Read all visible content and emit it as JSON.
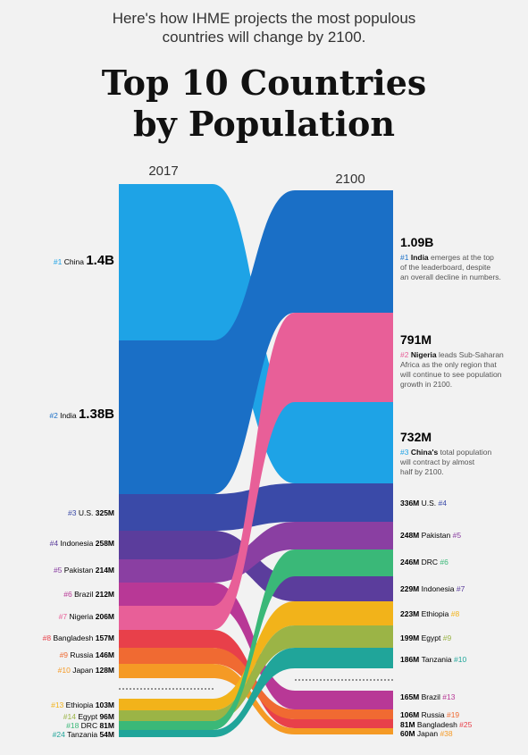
{
  "header": {
    "subtitle_line1": "Here's how IHME projects the most populous",
    "subtitle_line2": "countries will change by 2100.",
    "title_line1": "Top 10 Countries",
    "title_line2": "by Population"
  },
  "chart_data": {
    "type": "bump",
    "title": "Top 10 Countries by Population",
    "years": [
      "2017",
      "2100"
    ],
    "countries": [
      {
        "name": "China",
        "color": "#1ea3e6",
        "rank2017": "#1",
        "value2017": "1.4B",
        "rank2100": "#3",
        "value2100": "732M"
      },
      {
        "name": "India",
        "color": "#1a6fc6",
        "rank2017": "#2",
        "value2017": "1.38B",
        "rank2100": "#1",
        "value2100": "1.09B"
      },
      {
        "name": "U.S.",
        "color": "#3a4aa8",
        "rank2017": "#3",
        "value2017": "325M",
        "rank2100": "#4",
        "value2100": "336M"
      },
      {
        "name": "Indonesia",
        "color": "#5b3d9c",
        "rank2017": "#4",
        "value2017": "258M",
        "rank2100": "#7",
        "value2100": "229M"
      },
      {
        "name": "Pakistan",
        "color": "#8a3fa2",
        "rank2017": "#5",
        "value2017": "214M",
        "rank2100": "#5",
        "value2100": "248M"
      },
      {
        "name": "Brazil",
        "color": "#b83896",
        "rank2017": "#6",
        "value2017": "212M",
        "rank2100": "#13",
        "value2100": "165M"
      },
      {
        "name": "Nigeria",
        "color": "#e85f98",
        "rank2017": "#7",
        "value2017": "206M",
        "rank2100": "#2",
        "value2100": "791M"
      },
      {
        "name": "Bangladesh",
        "color": "#e8404a",
        "rank2017": "#8",
        "value2017": "157M",
        "rank2100": "#25",
        "value2100": "81M"
      },
      {
        "name": "Russia",
        "color": "#f06a32",
        "rank2017": "#9",
        "value2017": "146M",
        "rank2100": "#19",
        "value2100": "106M"
      },
      {
        "name": "Japan",
        "color": "#f59a25",
        "rank2017": "#10",
        "value2017": "128M",
        "rank2100": "#38",
        "value2100": "60M"
      },
      {
        "name": "Ethiopia",
        "color": "#f2b31a",
        "rank2017": "#13",
        "value2017": "103M",
        "rank2100": "#8",
        "value2100": "223M"
      },
      {
        "name": "Egypt",
        "color": "#9bb446",
        "rank2017": "#14",
        "value2017": "96M",
        "rank2100": "#9",
        "value2100": "199M"
      },
      {
        "name": "DRC",
        "color": "#3ab878",
        "rank2017": "#18",
        "value2017": "81M",
        "rank2100": "#6",
        "value2100": "246M"
      },
      {
        "name": "Tanzania",
        "color": "#20a59a",
        "rank2017": "#24",
        "value2017": "54M",
        "rank2100": "#10",
        "value2100": "186M"
      }
    ],
    "notes": {
      "india": {
        "before": "",
        "bold": "India",
        "after": " emerges at the top of the leaderboard, despite an overall decline in numbers."
      },
      "nigeria": {
        "before": "",
        "bold": "Nigeria",
        "after": " leads Sub-Saharan Africa as the only region that will continue to see population growth in 2100."
      },
      "china": {
        "before": "",
        "bold": "China's",
        "after": " total population will contract by almost half by 2100."
      }
    },
    "note_lines": {
      "india": [
        "emerges at the top",
        "of the leaderboard, despite",
        "an overall decline in numbers."
      ],
      "nigeria": [
        "leads Sub-Saharan",
        "Africa as the only region that",
        "will continue to see population",
        "growth in 2100."
      ],
      "china": [
        "total population",
        "will contract by almost",
        "half by 2100."
      ]
    }
  }
}
